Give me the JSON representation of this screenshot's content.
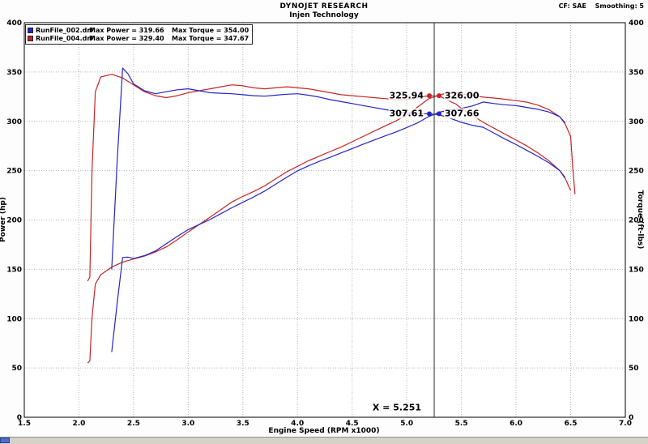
{
  "header": {
    "title": "DYNOJET RESEARCH",
    "subtitle": "Injen Technology",
    "cf": "CF: SAE",
    "smoothing": "Smoothing: 5"
  },
  "legend": [
    {
      "file": "RunFile_002.drf",
      "max_power": "Max Power = 319.66",
      "max_torque": "Max Torque = 354.00",
      "color": "#2424c8"
    },
    {
      "file": "RunFile_004.drf",
      "max_power": "Max Power = 329.40",
      "max_torque": "Max Torque = 347.67",
      "color": "#c82424"
    }
  ],
  "chart_data": {
    "type": "line",
    "title": "DYNOJET RESEARCH",
    "subtitle": "Injen Technology",
    "xlabel": "Engine Speed (RPM x1000)",
    "ylabel_left": "Power (hp)",
    "ylabel_right": "Torque (ft-lbs)",
    "xlim": [
      1.5,
      7.0
    ],
    "ylim": [
      0,
      400
    ],
    "x_ticks": [
      "1.5",
      "2.0",
      "2.5",
      "3.0",
      "3.5",
      "4.0",
      "4.5",
      "5.0",
      "5.5",
      "6.0",
      "6.5",
      "7.0"
    ],
    "y_ticks": [
      "0",
      "50",
      "100",
      "150",
      "200",
      "250",
      "300",
      "350",
      "400"
    ],
    "grid": "dotted",
    "legend_position": "top-left",
    "series": [
      {
        "name": "RunFile_004 Torque",
        "color": "#c82424",
        "x": [
          2.08,
          2.1,
          2.12,
          2.15,
          2.2,
          2.3,
          2.4,
          2.5,
          2.6,
          2.7,
          2.8,
          2.9,
          3.0,
          3.1,
          3.2,
          3.3,
          3.4,
          3.5,
          3.6,
          3.7,
          3.8,
          3.9,
          4.0,
          4.1,
          4.2,
          4.3,
          4.4,
          4.5,
          4.6,
          4.7,
          4.8,
          4.9,
          5.0,
          5.1,
          5.2,
          5.3,
          5.4,
          5.45,
          5.5,
          5.6,
          5.7,
          5.8,
          5.9,
          6.0,
          6.1,
          6.2,
          6.3,
          6.4,
          6.45,
          6.5
        ],
        "y": [
          138,
          142,
          250,
          330,
          345,
          347.7,
          344,
          337,
          330,
          326,
          324,
          326,
          329,
          331,
          333,
          335,
          337,
          336,
          334,
          333,
          334,
          335,
          334,
          333,
          331,
          329,
          327,
          326,
          325,
          324,
          323,
          322,
          322,
          324,
          326,
          325.5,
          320,
          317.5,
          313,
          306,
          299,
          293,
          287,
          281,
          275,
          268,
          260,
          250,
          242,
          230
        ]
      },
      {
        "name": "RunFile_004 Power",
        "color": "#c82424",
        "x": [
          2.08,
          2.1,
          2.12,
          2.15,
          2.2,
          2.3,
          2.4,
          2.5,
          2.6,
          2.7,
          2.8,
          2.9,
          3.0,
          3.1,
          3.2,
          3.3,
          3.4,
          3.5,
          3.6,
          3.7,
          3.8,
          3.9,
          4.0,
          4.1,
          4.2,
          4.3,
          4.4,
          4.5,
          4.6,
          4.7,
          4.8,
          4.9,
          5.0,
          5.1,
          5.2,
          5.3,
          5.4,
          5.45,
          5.5,
          5.6,
          5.7,
          5.8,
          5.9,
          6.0,
          6.1,
          6.2,
          6.3,
          6.4,
          6.45,
          6.5,
          6.52,
          6.54
        ],
        "y": [
          55,
          57,
          101,
          135,
          144.5,
          152.3,
          157.2,
          160.4,
          163.4,
          167.6,
          172.7,
          180,
          187.9,
          195.4,
          202.9,
          210.5,
          218.2,
          223.9,
          228.9,
          234.6,
          241.7,
          248.8,
          254.4,
          260,
          264.7,
          269.4,
          274,
          279.3,
          284.6,
          290,
          295.2,
          300.4,
          306.5,
          314.6,
          322.8,
          327,
          329,
          329.4,
          327.8,
          326.3,
          324.5,
          323.6,
          322.4,
          321,
          319.4,
          316.4,
          311.9,
          304.7,
          297.2,
          284.7,
          252,
          226
        ]
      },
      {
        "name": "RunFile_002 Torque",
        "color": "#2424c8",
        "x": [
          2.3,
          2.35,
          2.4,
          2.45,
          2.5,
          2.6,
          2.7,
          2.8,
          2.9,
          3.0,
          3.1,
          3.2,
          3.3,
          3.4,
          3.5,
          3.6,
          3.7,
          3.8,
          3.9,
          4.0,
          4.1,
          4.2,
          4.3,
          4.4,
          4.5,
          4.6,
          4.7,
          4.8,
          4.9,
          5.0,
          5.1,
          5.2,
          5.3,
          5.4,
          5.5,
          5.6,
          5.7,
          5.8,
          5.9,
          6.0,
          6.1,
          6.2,
          6.3,
          6.4,
          6.45
        ],
        "y": [
          150,
          260,
          354,
          348,
          338,
          331,
          328,
          330,
          332,
          333,
          331,
          329,
          328.5,
          328,
          327,
          326,
          325.5,
          326.5,
          327.5,
          328,
          326.5,
          324.5,
          322,
          320,
          318,
          316,
          314,
          312,
          310,
          308.5,
          307.5,
          307.8,
          306.5,
          303,
          299,
          296,
          294,
          288,
          282,
          276.5,
          270.5,
          264.5,
          258,
          250,
          243
        ]
      },
      {
        "name": "RunFile_002 Power",
        "color": "#2424c8",
        "x": [
          2.3,
          2.35,
          2.4,
          2.45,
          2.5,
          2.6,
          2.7,
          2.8,
          2.9,
          3.0,
          3.1,
          3.2,
          3.3,
          3.4,
          3.5,
          3.6,
          3.7,
          3.8,
          3.9,
          4.0,
          4.1,
          4.2,
          4.3,
          4.4,
          4.5,
          4.6,
          4.7,
          4.8,
          4.9,
          5.0,
          5.1,
          5.2,
          5.3,
          5.4,
          5.5,
          5.6,
          5.7,
          5.8,
          5.9,
          6.0,
          6.1,
          6.2,
          6.3,
          6.4,
          6.45
        ],
        "y": [
          66,
          116,
          162,
          162.3,
          160.9,
          163.9,
          168.6,
          175.9,
          183.3,
          190.2,
          195.4,
          200.5,
          206.4,
          212.4,
          217.9,
          223.4,
          229.3,
          236.2,
          243.2,
          249.8,
          254.9,
          259.5,
          263.6,
          268,
          272.4,
          276.7,
          281,
          285.2,
          289.2,
          293.7,
          298.5,
          304.8,
          309.3,
          311.5,
          313.1,
          315.6,
          319.6,
          318,
          316.8,
          315.9,
          314.1,
          312.2,
          309.5,
          304.6,
          298.4
        ]
      }
    ],
    "cursor": {
      "x": 5.251,
      "label": "X = 5.251",
      "markers": [
        {
          "value": "325.94",
          "y": 325.94,
          "side": "left",
          "color": "#c82424"
        },
        {
          "value": "326.00",
          "y": 326.0,
          "side": "right",
          "color": "#c82424"
        },
        {
          "value": "307.61",
          "y": 307.61,
          "side": "left",
          "color": "#2424c8"
        },
        {
          "value": "307.66",
          "y": 307.66,
          "side": "right",
          "color": "#2424c8"
        }
      ]
    }
  }
}
